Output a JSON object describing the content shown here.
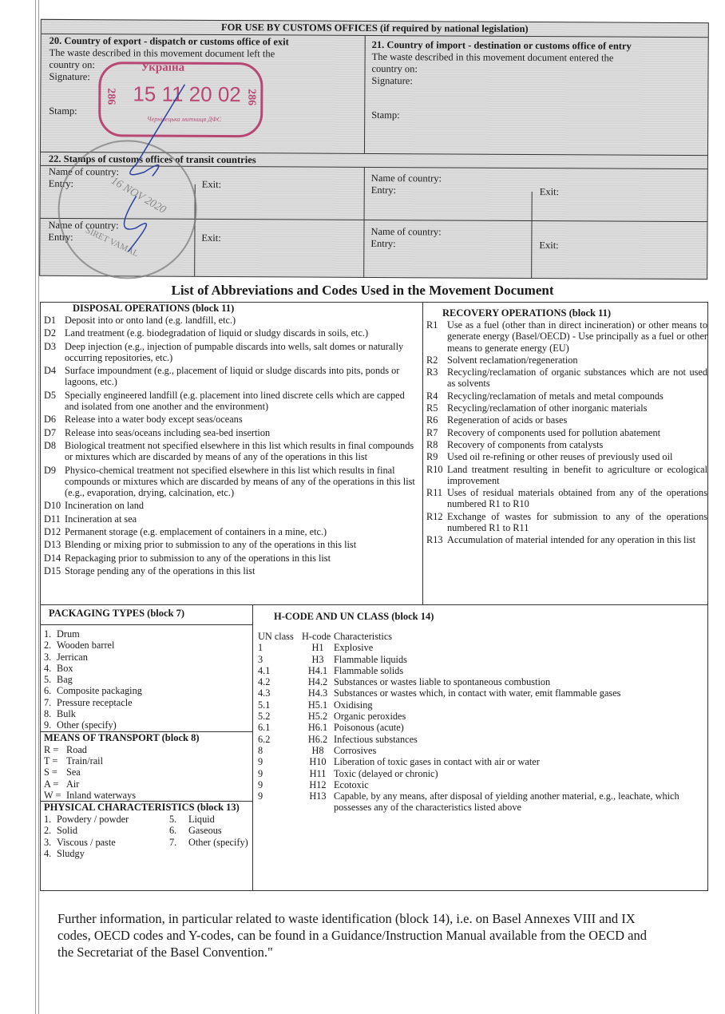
{
  "customs": {
    "header": "FOR USE BY CUSTOMS OFFICES (if required by national legislation)",
    "box20": {
      "title": "20. Country of export - dispatch or customs office of exit",
      "text": "The waste described in this movement document left the",
      "country_on": "country on:",
      "signature": "Signature:",
      "stamp": "Stamp:"
    },
    "box21": {
      "title": "21. Country of import - destination or customs office of entry",
      "text": "The waste described in this movement document entered the",
      "country_on": "country on:",
      "signature": "Signature:",
      "stamp": "Stamp:"
    },
    "box22": {
      "title": "22. Stamps of customs offices of transit countries",
      "cells": [
        {
          "name": "Name of country:",
          "entry": "Entry:",
          "exit": "Exit:"
        },
        {
          "name": "Name of country:",
          "entry": "Entry:",
          "exit": "Exit:"
        },
        {
          "name": "Name of country:",
          "entry": "Entry:",
          "exit": "Exit:"
        },
        {
          "name": "Name of country:",
          "entry": "Entry:",
          "exit": "Exit:"
        }
      ]
    },
    "stamps": {
      "red_country": "Україна",
      "red_date": "15 11 20 02",
      "red_number": "286",
      "red_office": "Чернівецька митниця ДФС",
      "round_date": "16 NOV 2020",
      "round_text": "SIRET VAMAL"
    }
  },
  "title": "List of Abbreviations and Codes Used in the Movement Document",
  "disposal": {
    "title": "DISPOSAL OPERATIONS (block 11)",
    "items": [
      {
        "code": "D1",
        "text": "Deposit into or onto land (e.g. landfill, etc.)"
      },
      {
        "code": "D2",
        "text": "Land treatment (e.g. biodegradation of liquid or sludgy discards in soils, etc.)"
      },
      {
        "code": "D3",
        "text": "Deep injection (e.g., injection of pumpable discards into wells, salt domes or naturally occurring repositories, etc.)"
      },
      {
        "code": "D4",
        "text": "Surface impoundment (e.g., placement of liquid or sludge discards into pits, ponds or lagoons, etc.)"
      },
      {
        "code": "D5",
        "text": "Specially engineered landfill (e.g. placement into lined discrete cells which are capped and isolated from one another and the environment)"
      },
      {
        "code": "D6",
        "text": "Release into a water body except seas/oceans"
      },
      {
        "code": "D7",
        "text": "Release into seas/oceans including sea-bed insertion"
      },
      {
        "code": "D8",
        "text": "Biological treatment not specified elsewhere in this list which results in final compounds or mixtures which are discarded by means of any of the operations in this list"
      },
      {
        "code": "D9",
        "text": "Physico-chemical treatment not specified elsewhere in this list which results in final compounds or mixtures which are discarded by means of any of the operations in this list (e.g., evaporation, drying, calcination, etc.)"
      },
      {
        "code": "D10",
        "text": "Incineration on land"
      },
      {
        "code": "D11",
        "text": "Incineration at sea"
      },
      {
        "code": "D12",
        "text": "Permanent storage (e.g. emplacement of containers in a mine, etc.)"
      },
      {
        "code": "D13",
        "text": "Blending or mixing prior to submission to any of the operations in this list"
      },
      {
        "code": "D14",
        "text": "Repackaging prior to submission to any of the operations in this list"
      },
      {
        "code": "D15",
        "text": "Storage pending any of the operations in this list"
      }
    ]
  },
  "recovery": {
    "title": "RECOVERY OPERATIONS (block 11)",
    "items": [
      {
        "code": "R1",
        "text": "Use as a fuel (other than in direct incineration) or other means to generate energy (Basel/OECD) - Use principally as a fuel or other means to generate energy (EU)"
      },
      {
        "code": "R2",
        "text": "Solvent reclamation/regeneration"
      },
      {
        "code": "R3",
        "text": "Recycling/reclamation of organic substances which are not used as solvents"
      },
      {
        "code": "R4",
        "text": "Recycling/reclamation of metals and metal compounds"
      },
      {
        "code": "R5",
        "text": "Recycling/reclamation of other inorganic materials"
      },
      {
        "code": "R6",
        "text": "Regeneration of acids or bases"
      },
      {
        "code": "R7",
        "text": "Recovery of components used for pollution abatement"
      },
      {
        "code": "R8",
        "text": "Recovery of components from catalysts"
      },
      {
        "code": "R9",
        "text": "Used oil re-refining or other reuses of previously used oil"
      },
      {
        "code": "R10",
        "text": "Land treatment resulting in benefit to agriculture or ecological improvement"
      },
      {
        "code": "R11",
        "text": "Uses of residual materials obtained from any of the operations numbered R1 to R10"
      },
      {
        "code": "R12",
        "text": "Exchange of wastes for submission to any of the operations numbered R1 to R11"
      },
      {
        "code": "R13",
        "text": "Accumulation of material intended for any operation in this list"
      }
    ]
  },
  "packaging": {
    "title": "PACKAGING TYPES (block 7)",
    "items": [
      {
        "code": "1.",
        "text": "Drum"
      },
      {
        "code": "2.",
        "text": "Wooden barrel"
      },
      {
        "code": "3.",
        "text": "Jerrican"
      },
      {
        "code": "4.",
        "text": "Box"
      },
      {
        "code": "5.",
        "text": "Bag"
      },
      {
        "code": "6.",
        "text": "Composite packaging"
      },
      {
        "code": "7.",
        "text": "Pressure receptacle"
      },
      {
        "code": "8.",
        "text": "Bulk"
      },
      {
        "code": "9.",
        "text": "Other (specify)"
      }
    ]
  },
  "transport": {
    "title": "MEANS OF TRANSPORT (block 8)",
    "items": [
      {
        "code": "R =",
        "text": "Road"
      },
      {
        "code": "T =",
        "text": "Train/rail"
      },
      {
        "code": "S =",
        "text": "Sea"
      },
      {
        "code": "A =",
        "text": "Air"
      },
      {
        "code": "W =",
        "text": "Inland waterways"
      }
    ]
  },
  "physical": {
    "title": "PHYSICAL CHARACTERISTICS (block 13)",
    "items": [
      {
        "code": "1.",
        "text": "Powdery / powder",
        "code2": "5.",
        "text2": "Liquid"
      },
      {
        "code": "2.",
        "text": "Solid",
        "code2": "6.",
        "text2": "Gaseous"
      },
      {
        "code": "3.",
        "text": "Viscous / paste",
        "code2": "7.",
        "text2": "Other (specify)"
      },
      {
        "code": "4.",
        "text": "Sludgy",
        "code2": "",
        "text2": ""
      }
    ]
  },
  "hcode": {
    "title": "H-CODE AND UN CLASS (block 14)",
    "headers": [
      "UN class",
      "H-code",
      "Characteristics"
    ],
    "rows": [
      [
        "1",
        "H1",
        "Explosive"
      ],
      [
        "3",
        "H3",
        "Flammable liquids"
      ],
      [
        "4.1",
        "H4.1",
        "Flammable solids"
      ],
      [
        "4.2",
        "H4.2",
        "Substances or wastes liable to spontaneous combustion"
      ],
      [
        "4.3",
        "H4.3",
        "Substances or wastes which, in contact with water, emit flammable gases"
      ],
      [
        "5.1",
        "H5.1",
        "Oxidising"
      ],
      [
        "5.2",
        "H5.2",
        "Organic peroxides"
      ],
      [
        "6.1",
        "H6.1",
        "Poisonous (acute)"
      ],
      [
        "6.2",
        "H6.2",
        "Infectious substances"
      ],
      [
        "8",
        "H8",
        "Corrosives"
      ],
      [
        "9",
        "H10",
        "Liberation of toxic gases in contact with air or water"
      ],
      [
        "9",
        "H11",
        "Toxic (delayed or chronic)"
      ],
      [
        "9",
        "H12",
        "Ecotoxic"
      ],
      [
        "9",
        "H13",
        "Capable, by any means, after disposal of yielding another material, e.g., leachate, which possesses any of the characteristics listed above"
      ]
    ]
  },
  "footer": "Further information, in particular related to waste identification (block 14), i.e. on Basel Annexes VIII and IX codes, OECD codes and Y-codes, can be found in a Guidance/Instruction Manual available from the OECD and the Secretariat of the Basel Convention.\""
}
